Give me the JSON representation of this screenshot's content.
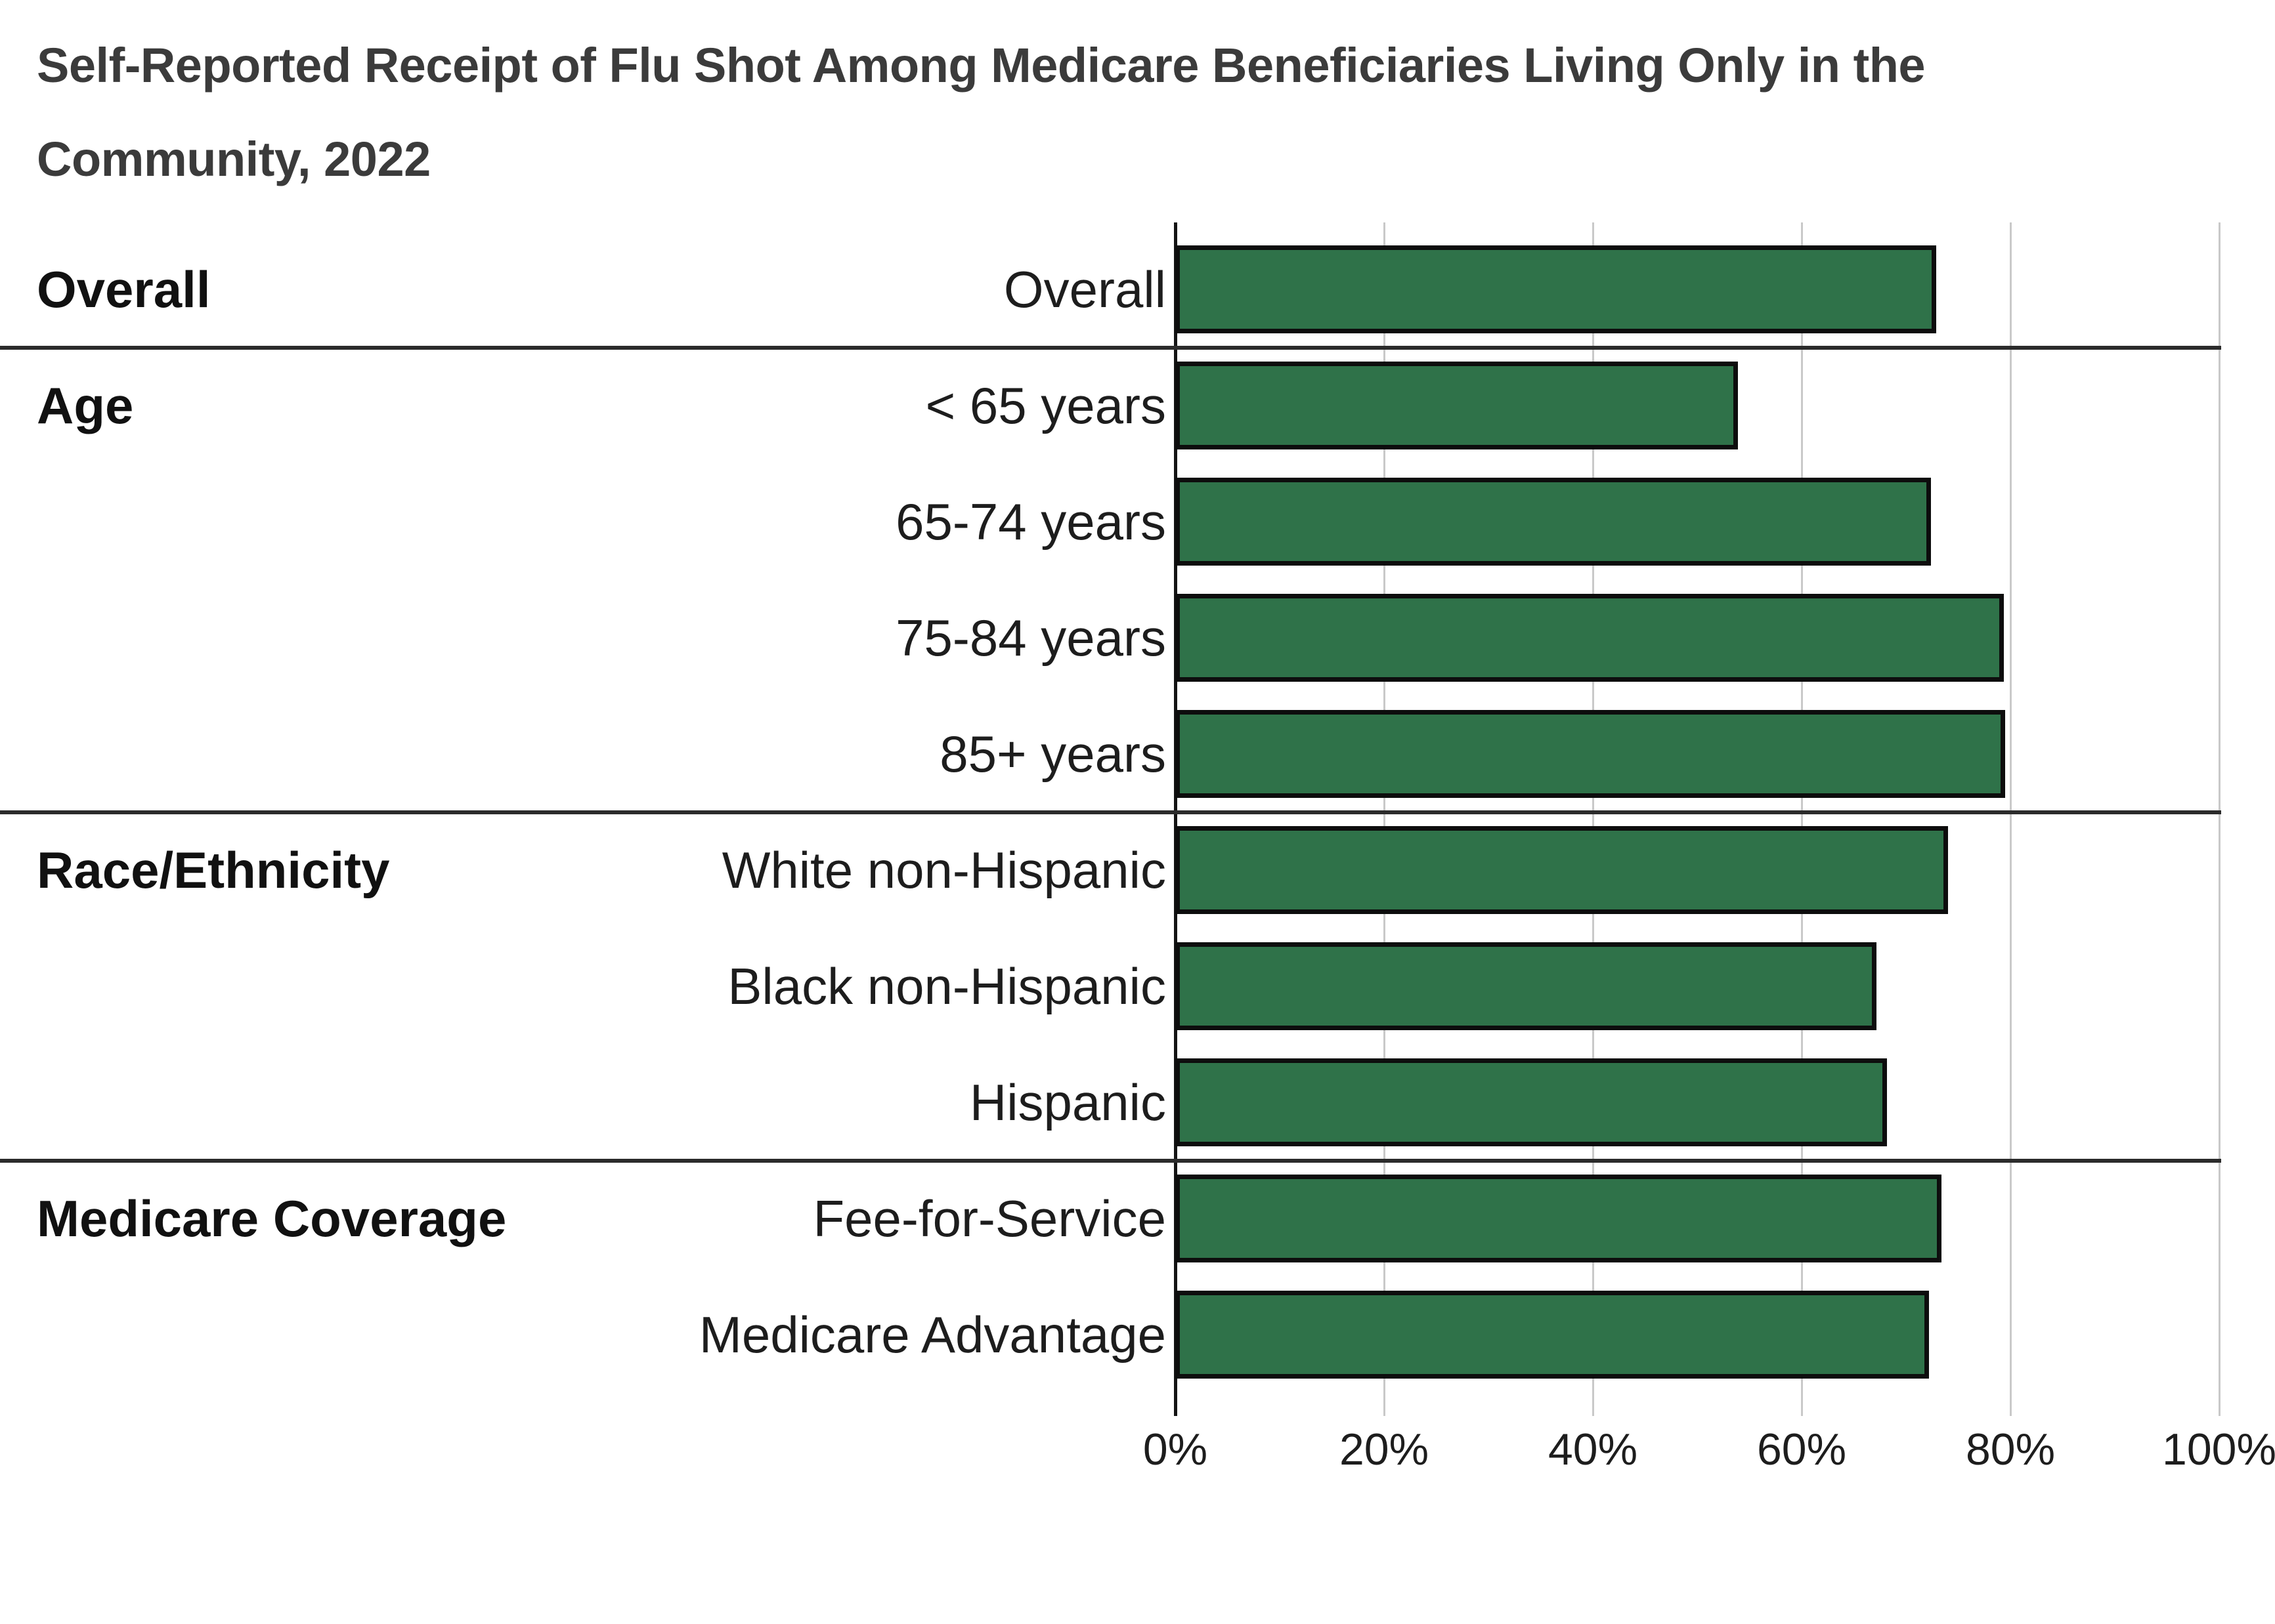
{
  "title": {
    "full": "Self-Reported Receipt of Flu Shot Among Medicare Beneficiaries Living Only in the Community, 2022",
    "line1": "Self-Reported Receipt of Flu Shot Among Medicare Beneficiaries Living Only in the",
    "line2": "Community, 2022"
  },
  "colors": {
    "bar_fill": "#2f7249",
    "bar_border": "#0d0d0d",
    "gridline": "#c9c9c9",
    "zero_axis": "#141414",
    "separator": "#2b2b2b",
    "title_text": "#3b3b3b",
    "label_text": "#1d1d1d",
    "background": "#ffffff"
  },
  "chart_data": {
    "type": "bar",
    "orientation": "horizontal",
    "unit": "%",
    "title": "Self-Reported Receipt of Flu Shot Among Medicare Beneficiaries Living Only in the Community, 2022",
    "xlabel": "",
    "ylabel": "",
    "xlim": [
      0,
      100
    ],
    "grid": true,
    "legend": "none",
    "axis_ticks": [
      {
        "value": 0,
        "label": "0%"
      },
      {
        "value": 20,
        "label": "20%"
      },
      {
        "value": 40,
        "label": "40%"
      },
      {
        "value": 60,
        "label": "60%"
      },
      {
        "value": 80,
        "label": "80%"
      },
      {
        "value": 100,
        "label": "100%"
      }
    ],
    "groups": [
      {
        "label": "Overall",
        "rows": [
          {
            "label": "Overall",
            "value": 72.9
          }
        ]
      },
      {
        "label": "Age",
        "rows": [
          {
            "label": "< 65 years",
            "value": 53.9
          },
          {
            "label": "65-74 years",
            "value": 72.4
          },
          {
            "label": "75-84 years",
            "value": 79.4
          },
          {
            "label": "85+ years",
            "value": 79.5
          }
        ]
      },
      {
        "label": "Race/Ethnicity",
        "rows": [
          {
            "label": "White non-Hispanic",
            "value": 74.0
          },
          {
            "label": "Black non-Hispanic",
            "value": 67.2
          },
          {
            "label": "Hispanic",
            "value": 68.2
          }
        ]
      },
      {
        "label": "Medicare Coverage",
        "rows": [
          {
            "label": "Fee-for-Service",
            "value": 73.4
          },
          {
            "label": "Medicare Advantage",
            "value": 72.2
          }
        ]
      }
    ]
  }
}
